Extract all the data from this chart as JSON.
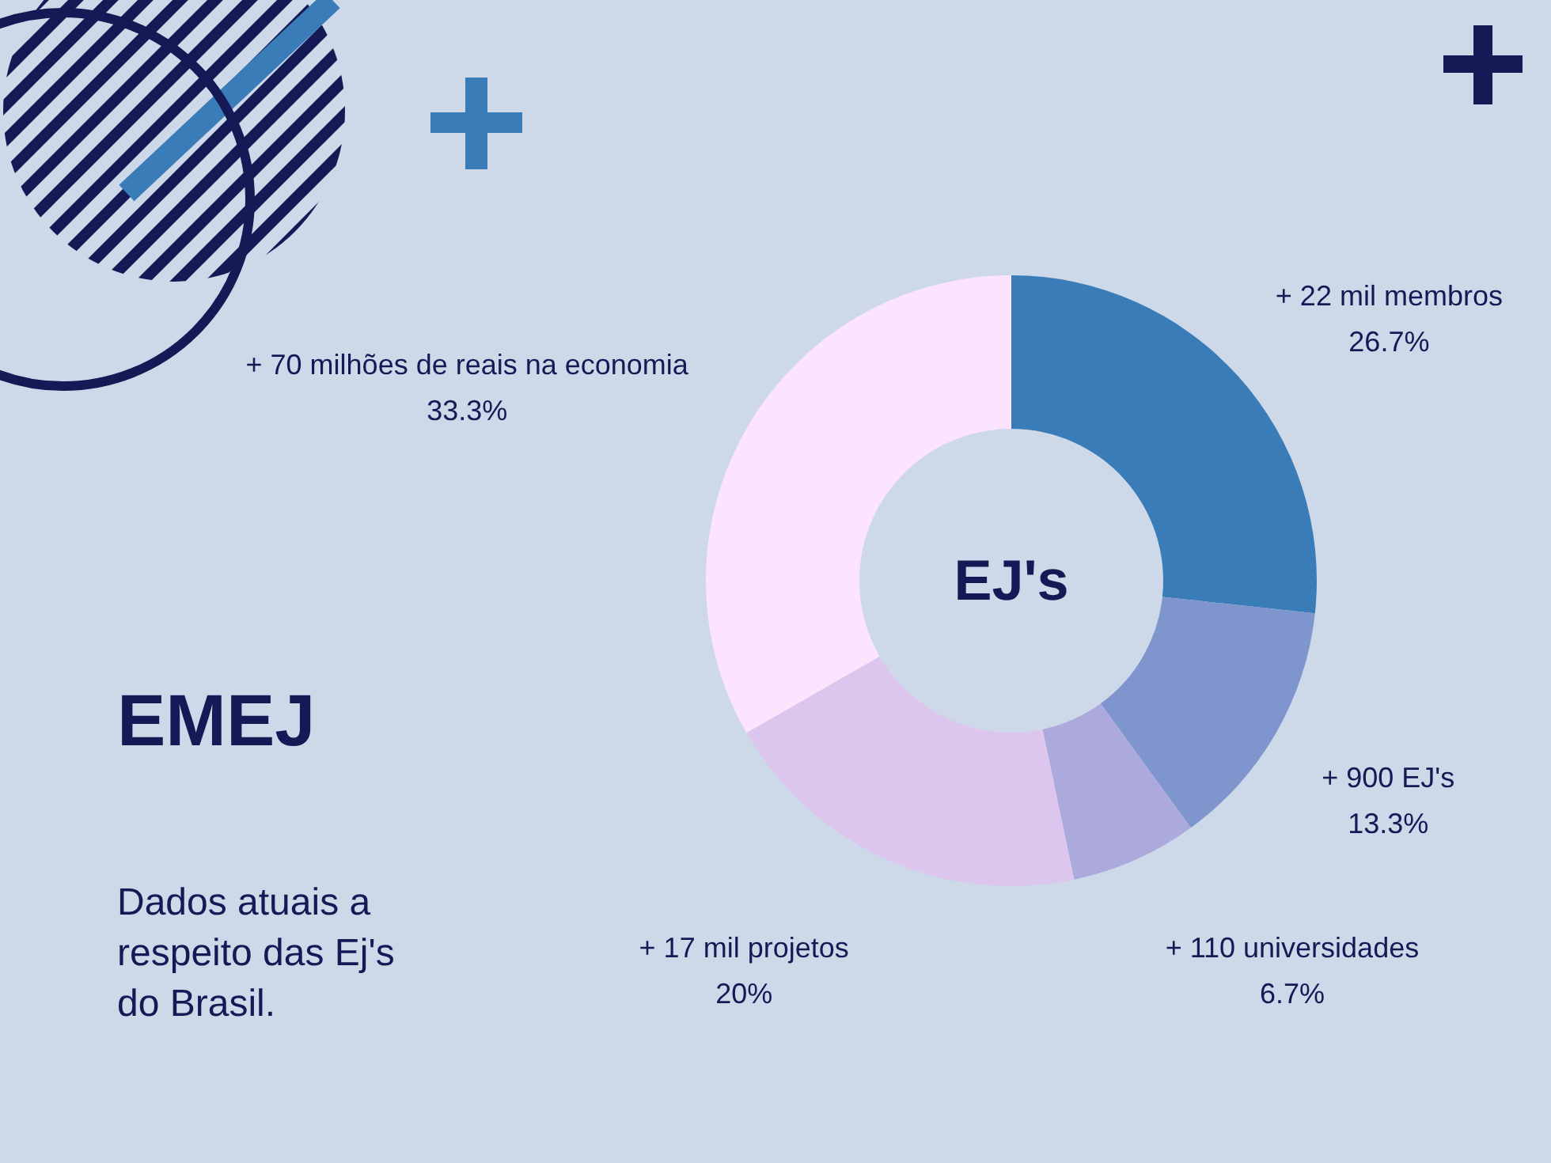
{
  "chart_data": {
    "type": "donut",
    "title": "EMEJ",
    "subtitle": "Dados atuais a respeito das Ej's do Brasil.",
    "annotations": [
      "EJ's"
    ],
    "categories": [
      "+ 22 mil membros",
      "+ 900 EJ's",
      "+ 110 universidades",
      "+ 17 mil projetos",
      "+ 70 milhões de reais na economia"
    ],
    "values": [
      26.7,
      13.3,
      6.7,
      20,
      33.3
    ],
    "value_labels": [
      "26.7%",
      "13.3%",
      "6.7%",
      "20%",
      "33.3%"
    ],
    "colors": [
      "#3a7cb8",
      "#7f95cd",
      "#aca9dd",
      "#dcc6ee",
      "#fde4fe"
    ]
  }
}
